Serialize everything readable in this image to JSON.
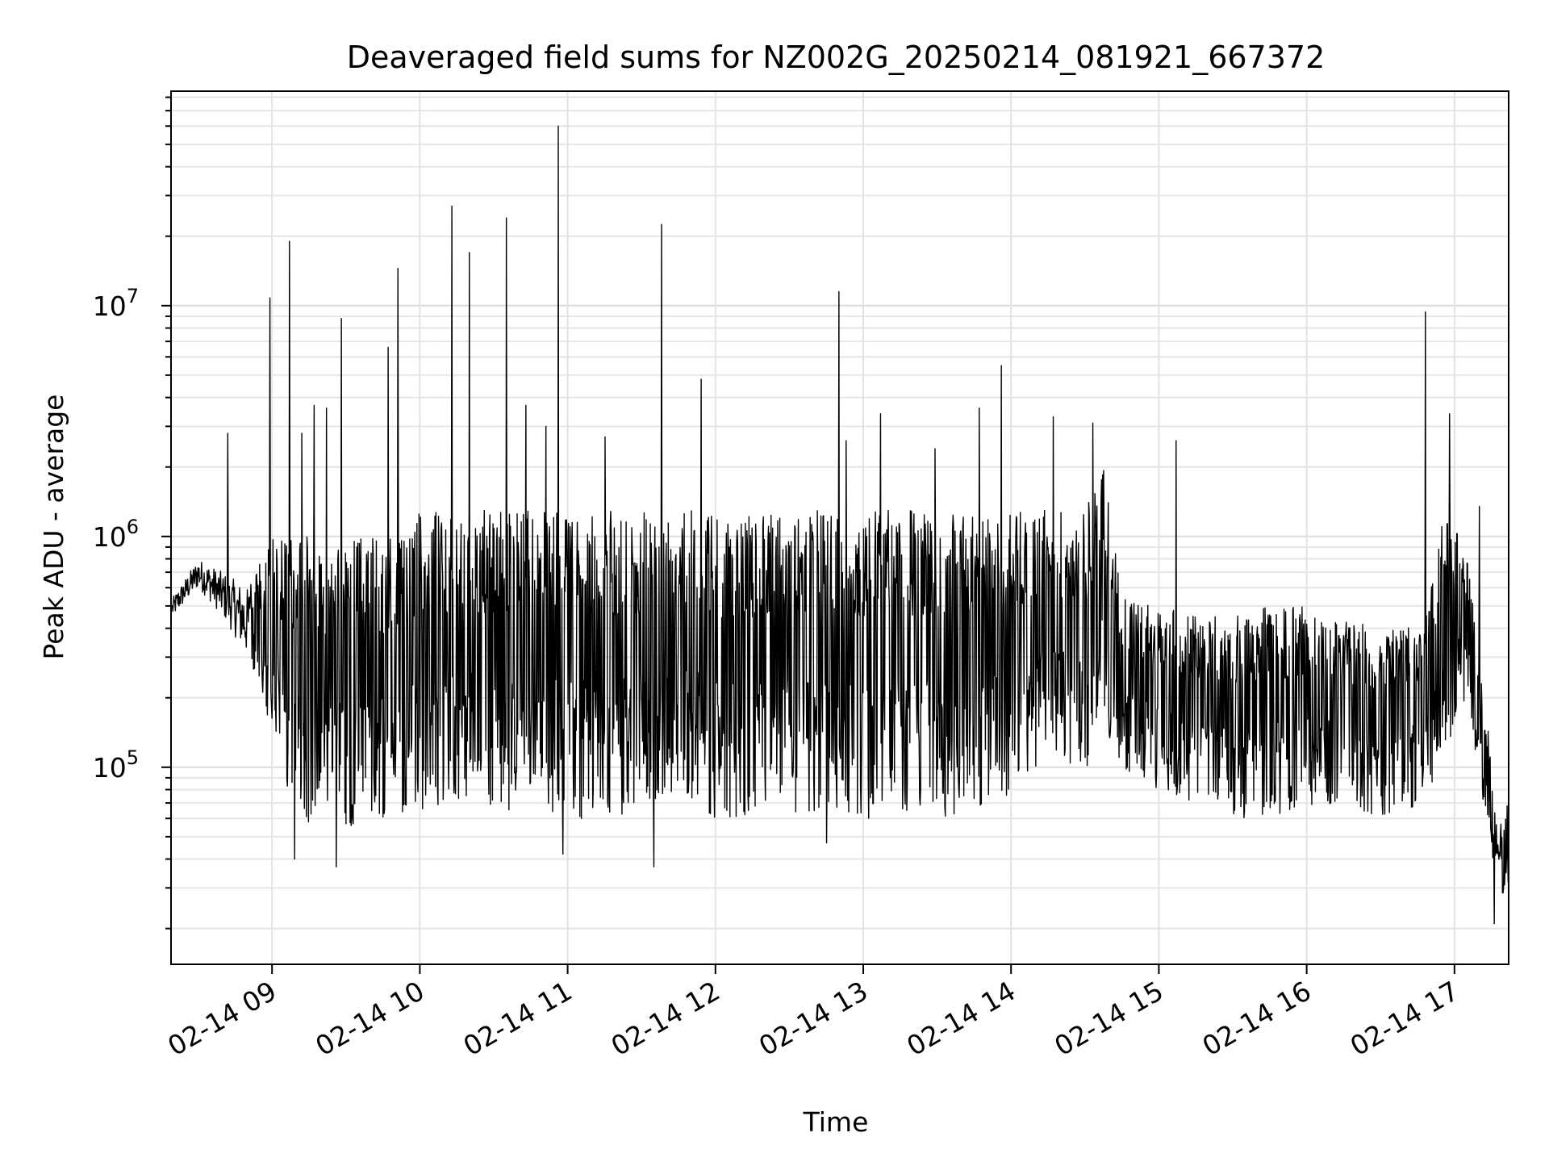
{
  "chart_data": {
    "type": "line",
    "title": "Deaveraged field sums for NZ002G_20250214_081921_667372",
    "xlabel": "Time",
    "ylabel": "Peak ADU - average",
    "yscale": "log",
    "ylim": [
      14000,
      85000000
    ],
    "xlim": [
      "2025-02-14 08:19",
      "2025-02-14 17:22"
    ],
    "grid": true,
    "legend": "none",
    "line_color": "#000000",
    "x_ticks": [
      "02-14 09",
      "02-14 10",
      "02-14 11",
      "02-14 12",
      "02-14 13",
      "02-14 14",
      "02-14 15",
      "02-14 16",
      "02-14 17"
    ],
    "y_ticks": [
      {
        "base": "10",
        "exp": "5",
        "value": 100000
      },
      {
        "base": "10",
        "exp": "6",
        "value": 1000000
      },
      {
        "base": "10",
        "exp": "7",
        "value": 10000000
      }
    ],
    "series": [
      {
        "x": [
          "2025-02-14 08:20",
          "2025-02-14 08:30",
          "2025-02-14 08:40",
          "2025-02-14 08:50",
          "2025-02-14 09:00",
          "2025-02-14 09:10",
          "2025-02-14 09:20",
          "2025-02-14 09:30",
          "2025-02-14 09:40",
          "2025-02-14 09:50",
          "2025-02-14 10:00",
          "2025-02-14 10:15",
          "2025-02-14 10:30",
          "2025-02-14 10:45",
          "2025-02-14 11:00",
          "2025-02-14 11:15",
          "2025-02-14 11:30",
          "2025-02-14 11:45",
          "2025-02-14 12:00",
          "2025-02-14 12:15",
          "2025-02-14 12:30",
          "2025-02-14 12:45",
          "2025-02-14 13:00",
          "2025-02-14 13:15",
          "2025-02-14 13:30",
          "2025-02-14 13:45",
          "2025-02-14 14:00",
          "2025-02-14 14:15",
          "2025-02-14 14:30",
          "2025-02-14 14:38",
          "2025-02-14 14:45",
          "2025-02-14 15:00",
          "2025-02-14 15:15",
          "2025-02-14 15:30",
          "2025-02-14 15:45",
          "2025-02-14 16:00",
          "2025-02-14 16:15",
          "2025-02-14 16:30",
          "2025-02-14 16:45",
          "2025-02-14 16:55",
          "2025-02-14 17:05",
          "2025-02-14 17:12",
          "2025-02-14 17:18",
          "2025-02-14 17:22"
        ],
        "low": [
          450000,
          600000,
          450000,
          300000,
          120000,
          60000,
          55000,
          55000,
          55000,
          60000,
          65000,
          70000,
          65000,
          65000,
          60000,
          60000,
          65000,
          80000,
          60000,
          60000,
          60000,
          60000,
          60000,
          60000,
          60000,
          65000,
          70000,
          120000,
          90000,
          150000,
          100000,
          80000,
          70000,
          60000,
          60000,
          65000,
          70000,
          60000,
          65000,
          100000,
          200000,
          60000,
          30000,
          25000
        ],
        "high": [
          550000,
          800000,
          700000,
          600000,
          1000000,
          1000000,
          1000000,
          1000000,
          1000000,
          1000000,
          1300000,
          1300000,
          1300000,
          1300000,
          1300000,
          1300000,
          1300000,
          1300000,
          1300000,
          1300000,
          1300000,
          1300000,
          1300000,
          1300000,
          1300000,
          1300000,
          1300000,
          1300000,
          1300000,
          2000000,
          600000,
          500000,
          450000,
          450000,
          500000,
          500000,
          450000,
          400000,
          450000,
          1200000,
          1000000,
          200000,
          60000,
          80000
        ]
      }
    ],
    "spikes": [
      {
        "x": "2025-02-14 08:42",
        "y": 2800000
      },
      {
        "x": "2025-02-14 08:59",
        "y": 10800000
      },
      {
        "x": "2025-02-14 09:07",
        "y": 19000000
      },
      {
        "x": "2025-02-14 09:12",
        "y": 2800000
      },
      {
        "x": "2025-02-14 09:17",
        "y": 3700000
      },
      {
        "x": "2025-02-14 09:22",
        "y": 3600000
      },
      {
        "x": "2025-02-14 09:28",
        "y": 8800000
      },
      {
        "x": "2025-02-14 09:47",
        "y": 6600000
      },
      {
        "x": "2025-02-14 09:51",
        "y": 14500000
      },
      {
        "x": "2025-02-14 10:13",
        "y": 27000000
      },
      {
        "x": "2025-02-14 10:20",
        "y": 17000000
      },
      {
        "x": "2025-02-14 10:35",
        "y": 24000000
      },
      {
        "x": "2025-02-14 10:43",
        "y": 3700000
      },
      {
        "x": "2025-02-14 10:51",
        "y": 3000000
      },
      {
        "x": "2025-02-14 10:56",
        "y": 60000000
      },
      {
        "x": "2025-02-14 11:15",
        "y": 2700000
      },
      {
        "x": "2025-02-14 11:38",
        "y": 22500000
      },
      {
        "x": "2025-02-14 11:54",
        "y": 4800000
      },
      {
        "x": "2025-02-14 12:50",
        "y": 11500000
      },
      {
        "x": "2025-02-14 12:53",
        "y": 2600000
      },
      {
        "x": "2025-02-14 13:07",
        "y": 3400000
      },
      {
        "x": "2025-02-14 13:29",
        "y": 2400000
      },
      {
        "x": "2025-02-14 13:47",
        "y": 3600000
      },
      {
        "x": "2025-02-14 13:56",
        "y": 5500000
      },
      {
        "x": "2025-02-14 14:17",
        "y": 3300000
      },
      {
        "x": "2025-02-14 14:33",
        "y": 3100000
      },
      {
        "x": "2025-02-14 15:07",
        "y": 2600000
      },
      {
        "x": "2025-02-14 16:48",
        "y": 9400000
      },
      {
        "x": "2025-02-14 16:58",
        "y": 3400000
      },
      {
        "x": "2025-02-14 17:10",
        "y": 1350000
      }
    ],
    "dips": [
      {
        "x": "2025-02-14 09:09",
        "y": 40000
      },
      {
        "x": "2025-02-14 09:26",
        "y": 37000
      },
      {
        "x": "2025-02-14 10:58",
        "y": 42000
      },
      {
        "x": "2025-02-14 11:35",
        "y": 37000
      },
      {
        "x": "2025-02-14 12:45",
        "y": 47000
      },
      {
        "x": "2025-02-14 17:16",
        "y": 21000
      }
    ]
  }
}
